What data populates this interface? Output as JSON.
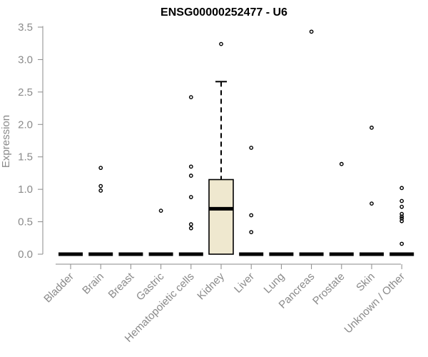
{
  "chart_data": {
    "type": "box",
    "title": "ENSG00000252477 - U6",
    "xlabel": "",
    "ylabel": "Expression",
    "ylim": [
      0,
      3.5
    ],
    "yticks": [
      0.0,
      0.5,
      1.0,
      1.5,
      2.0,
      2.5,
      3.0,
      3.5
    ],
    "ytick_labels": [
      "0.0",
      "0.5",
      "1.0",
      "1.5",
      "2.0",
      "2.5",
      "3.0",
      "3.5"
    ],
    "grid": false,
    "legend": "none",
    "box_fill": "#efe8cf",
    "categories": [
      "Bladder",
      "Brain",
      "Breast",
      "Gastric",
      "Hematopoietic cells",
      "Kidney",
      "Liver",
      "Lung",
      "Pancreas",
      "Prostate",
      "Skin",
      "Unknown / Other"
    ],
    "boxes": [
      {
        "category": "Bladder",
        "q1": 0,
        "median": 0,
        "q3": 0,
        "whisker_low": 0,
        "whisker_high": 0,
        "outliers": []
      },
      {
        "category": "Brain",
        "q1": 0,
        "median": 0,
        "q3": 0,
        "whisker_low": 0,
        "whisker_high": 0,
        "outliers": [
          1.33,
          1.05,
          0.98
        ]
      },
      {
        "category": "Breast",
        "q1": 0,
        "median": 0,
        "q3": 0,
        "whisker_low": 0,
        "whisker_high": 0,
        "outliers": []
      },
      {
        "category": "Gastric",
        "q1": 0,
        "median": 0,
        "q3": 0,
        "whisker_low": 0,
        "whisker_high": 0,
        "outliers": [
          0.67
        ]
      },
      {
        "category": "Hematopoietic cells",
        "q1": 0,
        "median": 0,
        "q3": 0,
        "whisker_low": 0,
        "whisker_high": 0,
        "outliers": [
          2.42,
          1.35,
          1.21,
          0.88,
          0.46,
          0.4
        ]
      },
      {
        "category": "Kidney",
        "q1": 0,
        "median": 0.7,
        "q3": 1.15,
        "whisker_low": 0,
        "whisker_high": 2.66,
        "outliers": [
          3.24
        ]
      },
      {
        "category": "Liver",
        "q1": 0,
        "median": 0,
        "q3": 0,
        "whisker_low": 0,
        "whisker_high": 0,
        "outliers": [
          1.64,
          0.6,
          0.34
        ]
      },
      {
        "category": "Lung",
        "q1": 0,
        "median": 0,
        "q3": 0,
        "whisker_low": 0,
        "whisker_high": 0,
        "outliers": []
      },
      {
        "category": "Pancreas",
        "q1": 0,
        "median": 0,
        "q3": 0,
        "whisker_low": 0,
        "whisker_high": 0,
        "outliers": [
          3.43
        ]
      },
      {
        "category": "Prostate",
        "q1": 0,
        "median": 0,
        "q3": 0,
        "whisker_low": 0,
        "whisker_high": 0,
        "outliers": [
          1.39
        ]
      },
      {
        "category": "Skin",
        "q1": 0,
        "median": 0,
        "q3": 0,
        "whisker_low": 0,
        "whisker_high": 0,
        "outliers": [
          1.95,
          0.78
        ]
      },
      {
        "category": "Unknown / Other",
        "q1": 0,
        "median": 0,
        "q3": 0,
        "whisker_low": 0,
        "whisker_high": 0,
        "outliers": [
          1.02,
          0.82,
          0.73,
          0.62,
          0.58,
          0.55,
          0.51,
          0.16
        ]
      }
    ]
  }
}
